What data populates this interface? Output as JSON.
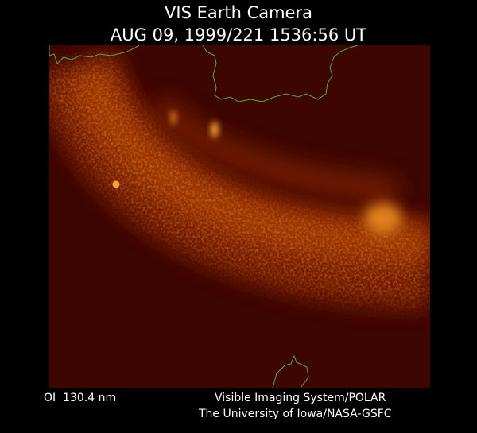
{
  "header": {
    "title": "VIS Earth Camera",
    "timestamp": "AUG 09, 1999/221 1536:56 UT"
  },
  "footer": {
    "filter": "OI  130.4 nm",
    "credit_line1": "Visible Imaging System/POLAR",
    "credit_line2": "The University of Iowa/NASA-GSFC"
  }
}
